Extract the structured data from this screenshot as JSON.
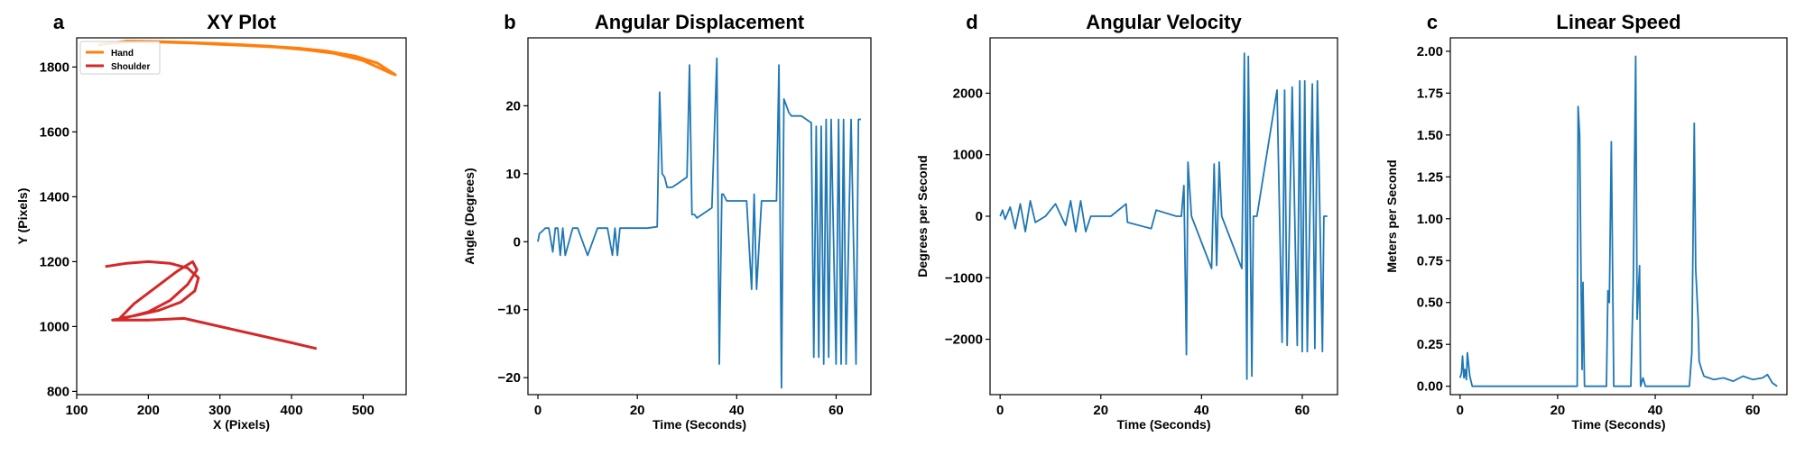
{
  "colors": {
    "blue": "#1f77b4",
    "orange": "#ff7f0e",
    "red": "#d62728"
  },
  "chart_data": [
    {
      "panel_letter": "a",
      "type": "line",
      "title": "XY Plot",
      "xlabel": "X (Pixels)",
      "ylabel": "Y (Pixels)",
      "xlim": [
        100,
        560
      ],
      "ylim": [
        790,
        1890
      ],
      "xticks": [
        100,
        200,
        300,
        400,
        500
      ],
      "yticks": [
        800,
        1000,
        1200,
        1400,
        1600,
        1800
      ],
      "legend": "top-left",
      "series": [
        {
          "name": "Hand",
          "color": "#ff7f0e",
          "x": [
            130,
            170,
            210,
            250,
            290,
            330,
            370,
            410,
            450,
            490,
            520,
            545,
            540,
            500,
            460,
            420,
            380,
            340,
            300,
            260,
            220,
            180,
            140,
            130
          ],
          "y": [
            1868,
            1880,
            1879,
            1876,
            1873,
            1869,
            1864,
            1858,
            1849,
            1833,
            1812,
            1776,
            1780,
            1820,
            1842,
            1853,
            1861,
            1866,
            1870,
            1874,
            1877,
            1878,
            1872,
            1868
          ]
        },
        {
          "name": "Shoulder",
          "color": "#d62728",
          "x": [
            140,
            170,
            200,
            230,
            255,
            270,
            265,
            245,
            215,
            185,
            160,
            180,
            210,
            240,
            262,
            268,
            255,
            230,
            200,
            165,
            150,
            200,
            250,
            300,
            350,
            400,
            435
          ],
          "y": [
            1185,
            1195,
            1200,
            1195,
            1180,
            1150,
            1110,
            1075,
            1050,
            1035,
            1025,
            1070,
            1120,
            1170,
            1200,
            1175,
            1130,
            1080,
            1045,
            1025,
            1020,
            1020,
            1025,
            1000,
            975,
            950,
            932
          ]
        }
      ]
    },
    {
      "panel_letter": "b",
      "type": "line",
      "title": "Angular Displacement",
      "xlabel": "Time (Seconds)",
      "ylabel": "Angle (Degrees)",
      "xlim": [
        -2,
        67
      ],
      "ylim": [
        -22.5,
        30
      ],
      "xticks": [
        0,
        20,
        40,
        60
      ],
      "yticks": [
        -20,
        -10,
        0,
        10,
        20
      ],
      "series": [
        {
          "color": "#1f77b4",
          "x": [
            0,
            0.3,
            0.8,
            1.5,
            2.2,
            3,
            3.5,
            4,
            4.5,
            5,
            5.5,
            7,
            8,
            10,
            12,
            14,
            15,
            15.5,
            16,
            16.5,
            17,
            18,
            20,
            22,
            24,
            24.5,
            25,
            25.5,
            26,
            27,
            28,
            29,
            30,
            30.5,
            31,
            31.5,
            32,
            33,
            35,
            36,
            36.5,
            37,
            37.3,
            38,
            40,
            42,
            43,
            43.5,
            44,
            45,
            47,
            48,
            48.5,
            49,
            49.5,
            50,
            50.5,
            51,
            52,
            53,
            54,
            55,
            55.5,
            56,
            56.5,
            57,
            57.5,
            58,
            58.5,
            59,
            60,
            60.5,
            61,
            61.5,
            62,
            63,
            64,
            64.5,
            65
          ],
          "y": [
            0,
            1.2,
            1.5,
            2,
            2,
            -1.5,
            2,
            2,
            -2,
            2,
            -2,
            2,
            2,
            -2,
            2,
            2,
            -2,
            2,
            -2,
            2,
            2,
            2,
            2,
            2,
            2.2,
            22,
            10,
            9.5,
            8,
            8,
            8.5,
            9,
            9.5,
            26,
            4,
            4,
            3.5,
            4,
            5,
            27,
            -18,
            7,
            7,
            6,
            6,
            6,
            -7,
            7,
            -7,
            6,
            6,
            6,
            26,
            -21.5,
            21,
            20,
            19,
            18.5,
            18.5,
            18.5,
            18,
            17.5,
            -17,
            17,
            -17,
            17,
            -18,
            18,
            -17,
            18,
            -18,
            18,
            -18,
            18,
            -18,
            18,
            -18,
            18,
            18
          ]
        }
      ]
    },
    {
      "panel_letter": "d",
      "type": "line",
      "title": "Angular Velocity",
      "xlabel": "Time (Seconds)",
      "ylabel": "Degrees per Second",
      "xlim": [
        -2,
        67
      ],
      "ylim": [
        -2900,
        2900
      ],
      "xticks": [
        0,
        20,
        40,
        60
      ],
      "yticks": [
        -2000,
        -1000,
        0,
        1000,
        2000
      ],
      "series": [
        {
          "color": "#1f77b4",
          "x": [
            0,
            0.5,
            1,
            2,
            3,
            4,
            5,
            6,
            7,
            9,
            11,
            13,
            14,
            15,
            16,
            17,
            18,
            20,
            22,
            25,
            25.3,
            30,
            31,
            35,
            36,
            36.5,
            37,
            37.3,
            38,
            42,
            42.5,
            43,
            43.5,
            44,
            48,
            48.5,
            49,
            49.3,
            50,
            50.3,
            51,
            55,
            56,
            56.5,
            57,
            58,
            59,
            59.5,
            60,
            60.5,
            61,
            62,
            62.5,
            63,
            64,
            64.3,
            65
          ],
          "y": [
            0,
            100,
            -50,
            150,
            -200,
            200,
            -250,
            250,
            -100,
            0,
            200,
            -150,
            250,
            -250,
            250,
            -250,
            0,
            0,
            0,
            200,
            -100,
            -200,
            100,
            0,
            0,
            500,
            -2250,
            880,
            0,
            -850,
            850,
            -800,
            880,
            0,
            -850,
            2650,
            -2650,
            2600,
            -2600,
            0,
            0,
            2050,
            -2050,
            2050,
            -2100,
            2100,
            -2100,
            2200,
            -2200,
            2200,
            -2200,
            2150,
            -2150,
            2200,
            -2200,
            0,
            0
          ]
        }
      ]
    },
    {
      "panel_letter": "c",
      "type": "line",
      "title": "Linear Speed",
      "xlabel": "Time (Seconds)",
      "ylabel": "Meters per Second",
      "xlim": [
        -2,
        67
      ],
      "ylim": [
        -0.05,
        2.08
      ],
      "xticks": [
        0,
        20,
        40,
        60
      ],
      "yticks": [
        0.0,
        0.25,
        0.5,
        0.75,
        1.0,
        1.25,
        1.5,
        1.75,
        2.0
      ],
      "series": [
        {
          "color": "#1f77b4",
          "x": [
            0,
            0.3,
            0.5,
            0.8,
            1,
            1.3,
            1.5,
            2,
            2.5,
            3,
            4,
            10,
            20,
            24,
            24.2,
            24.5,
            24.8,
            25,
            25.2,
            25.5,
            26,
            30,
            30.3,
            30.6,
            31,
            31.5,
            32,
            35,
            35.5,
            36,
            36.3,
            36.8,
            37,
            37.5,
            38,
            47,
            47.5,
            48,
            48.3,
            48.8,
            49,
            49.5,
            50,
            52,
            54,
            56,
            58,
            60,
            62,
            63,
            64,
            65
          ],
          "y": [
            0.05,
            0.08,
            0.18,
            0.05,
            0.1,
            0.04,
            0.2,
            0.06,
            0,
            0,
            0,
            0,
            0,
            0,
            1.67,
            1.5,
            0.62,
            0.1,
            0.62,
            0,
            0,
            0,
            0.57,
            0.5,
            1.46,
            0,
            0,
            0,
            0.6,
            1.97,
            0.4,
            0.72,
            0,
            0.05,
            0,
            0,
            0.2,
            1.57,
            0.7,
            0.4,
            0.15,
            0.1,
            0.06,
            0.04,
            0.05,
            0.03,
            0.06,
            0.04,
            0.05,
            0.07,
            0.02,
            0
          ]
        }
      ]
    }
  ]
}
